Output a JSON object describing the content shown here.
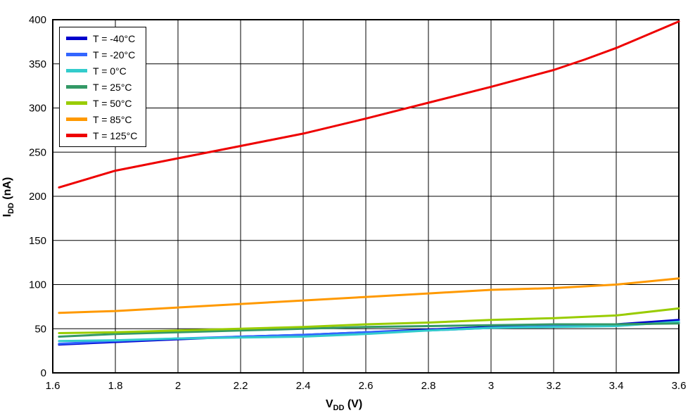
{
  "chart_data": {
    "type": "line",
    "title": "",
    "xlabel": "VDD (V)",
    "ylabel": "IDD (nA)",
    "xlabel_parts": {
      "main": "V",
      "sub": "DD",
      "unit": " (V)"
    },
    "ylabel_parts": {
      "main": "I",
      "sub": "DD",
      "unit": " (nA)"
    },
    "xlim": [
      1.6,
      3.6
    ],
    "ylim": [
      0,
      400
    ],
    "xtick_labels": [
      "1.6",
      "1.8",
      "2",
      "2.2",
      "2.4",
      "2.6",
      "2.8",
      "3",
      "3.2",
      "3.4",
      "3.6"
    ],
    "ytick_labels": [
      "0",
      "50",
      "100",
      "150",
      "200",
      "250",
      "300",
      "350",
      "400"
    ],
    "grid": true,
    "grid_color": "#000000",
    "legend_position": "top-left",
    "series": [
      {
        "name": "T = -40°C",
        "color": "#0000CC",
        "x": [
          1.62,
          1.8,
          2.0,
          2.2,
          2.4,
          2.6,
          2.8,
          3.0,
          3.2,
          3.4,
          3.6
        ],
        "y": [
          32,
          35,
          38,
          41,
          43,
          46,
          49,
          52,
          53,
          55,
          60
        ]
      },
      {
        "name": "T = -20°C",
        "color": "#3366FF",
        "x": [
          1.62,
          1.8,
          2.0,
          2.2,
          2.4,
          2.6,
          2.8,
          3.0,
          3.2,
          3.4,
          3.6
        ],
        "y": [
          33,
          36,
          39,
          41,
          43,
          46,
          48,
          51,
          53,
          54,
          57
        ]
      },
      {
        "name": "T = 0°C",
        "color": "#33CCCC",
        "x": [
          1.62,
          1.8,
          2.0,
          2.2,
          2.4,
          2.6,
          2.8,
          3.0,
          3.2,
          3.4,
          3.6
        ],
        "y": [
          36,
          37,
          39,
          40,
          41,
          44,
          48,
          51,
          52,
          53,
          58
        ]
      },
      {
        "name": "T = 25°C",
        "color": "#339966",
        "x": [
          1.62,
          1.8,
          2.0,
          2.2,
          2.4,
          2.6,
          2.8,
          3.0,
          3.2,
          3.4,
          3.6
        ],
        "y": [
          41,
          44,
          46,
          48,
          50,
          52,
          53,
          54,
          55,
          55,
          56
        ]
      },
      {
        "name": "T = 50°C",
        "color": "#99CC00",
        "x": [
          1.62,
          1.8,
          2.0,
          2.2,
          2.4,
          2.6,
          2.8,
          3.0,
          3.2,
          3.4,
          3.6
        ],
        "y": [
          45,
          46,
          48,
          50,
          52,
          55,
          57,
          60,
          62,
          65,
          73
        ]
      },
      {
        "name": "T = 85°C",
        "color": "#FF9900",
        "x": [
          1.62,
          1.8,
          2.0,
          2.2,
          2.4,
          2.6,
          2.8,
          3.0,
          3.2,
          3.4,
          3.6
        ],
        "y": [
          68,
          70,
          74,
          78,
          82,
          86,
          90,
          94,
          96,
          100,
          107
        ]
      },
      {
        "name": "T = 125°C",
        "color": "#EE0000",
        "x": [
          1.62,
          1.8,
          2.0,
          2.2,
          2.4,
          2.6,
          2.8,
          3.0,
          3.2,
          3.3,
          3.4,
          3.6
        ],
        "y": [
          210,
          229,
          243,
          257,
          271,
          288,
          306,
          324,
          343,
          355,
          368,
          398
        ]
      }
    ]
  }
}
